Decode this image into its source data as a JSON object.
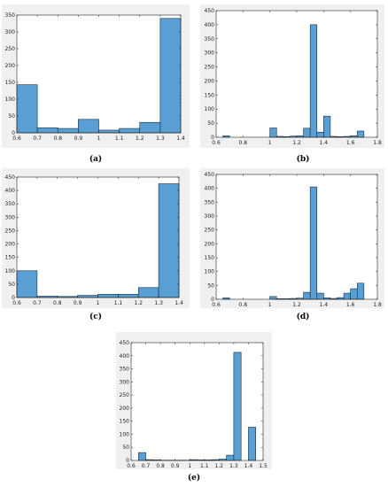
{
  "bar_color": "#5a9fd4",
  "bar_edge": "#1a2a3a",
  "panel_bg": "#f0f0f0",
  "chart_data": [
    {
      "type": "bar",
      "label": "(a)",
      "xlim": [
        0.6,
        1.4
      ],
      "ylim": [
        0,
        350
      ],
      "xticks": [
        "0.6",
        "0.7",
        "0.8",
        "0.9",
        "1",
        "1.1",
        "1.2",
        "1.3",
        "1.4"
      ],
      "xtick_values": [
        0.6,
        0.7,
        0.8,
        0.9,
        1.0,
        1.1,
        1.2,
        1.3,
        1.4
      ],
      "yticks": [
        "0",
        "50",
        "100",
        "150",
        "200",
        "250",
        "300",
        "350"
      ],
      "ytick_values": [
        0,
        50,
        100,
        150,
        200,
        250,
        300,
        350
      ],
      "bins": [
        [
          0.6,
          0.7,
          143
        ],
        [
          0.7,
          0.8,
          15
        ],
        [
          0.8,
          0.9,
          13
        ],
        [
          0.9,
          1.0,
          40
        ],
        [
          1.0,
          1.1,
          8
        ],
        [
          1.1,
          1.2,
          13
        ],
        [
          1.2,
          1.3,
          31
        ],
        [
          1.3,
          1.4,
          340
        ]
      ]
    },
    {
      "type": "bar",
      "label": "(b)",
      "xlim": [
        0.6,
        1.8
      ],
      "ylim": [
        0,
        450
      ],
      "xticks": [
        "0.6",
        "0.8",
        "1",
        "1.2",
        "1.4",
        "1.6",
        "1.8"
      ],
      "xtick_values": [
        0.6,
        0.8,
        1.0,
        1.2,
        1.4,
        1.6,
        1.8
      ],
      "yticks": [
        "0",
        "50",
        "100",
        "150",
        "200",
        "250",
        "300",
        "350",
        "400",
        "450"
      ],
      "ytick_values": [
        0,
        50,
        100,
        150,
        200,
        250,
        300,
        350,
        400,
        450
      ],
      "bins": [
        [
          0.65,
          0.7,
          5
        ],
        [
          1.0,
          1.05,
          33
        ],
        [
          1.05,
          1.1,
          3
        ],
        [
          1.1,
          1.15,
          2
        ],
        [
          1.15,
          1.2,
          4
        ],
        [
          1.2,
          1.25,
          5
        ],
        [
          1.25,
          1.3,
          32
        ],
        [
          1.3,
          1.35,
          400
        ],
        [
          1.35,
          1.4,
          18
        ],
        [
          1.4,
          1.45,
          75
        ],
        [
          1.45,
          1.5,
          3
        ],
        [
          1.5,
          1.55,
          2
        ],
        [
          1.55,
          1.6,
          3
        ],
        [
          1.6,
          1.65,
          5
        ],
        [
          1.65,
          1.7,
          22
        ]
      ]
    },
    {
      "type": "bar",
      "label": "(c)",
      "xlim": [
        0.6,
        1.4
      ],
      "ylim": [
        0,
        450
      ],
      "xticks": [
        "0.6",
        "0.7",
        "0.8",
        "0.9",
        "1",
        "1.1",
        "1.2",
        "1.3",
        "1.4"
      ],
      "xtick_values": [
        0.6,
        0.7,
        0.8,
        0.9,
        1.0,
        1.1,
        1.2,
        1.3,
        1.4
      ],
      "yticks": [
        "0",
        "50",
        "100",
        "150",
        "200",
        "250",
        "300",
        "350",
        "400",
        "450"
      ],
      "ytick_values": [
        0,
        50,
        100,
        150,
        200,
        250,
        300,
        350,
        400,
        450
      ],
      "bins": [
        [
          0.6,
          0.7,
          100
        ],
        [
          0.7,
          0.8,
          5
        ],
        [
          0.8,
          0.9,
          4
        ],
        [
          0.9,
          1.0,
          8
        ],
        [
          1.0,
          1.1,
          12
        ],
        [
          1.1,
          1.2,
          12
        ],
        [
          1.2,
          1.3,
          37
        ],
        [
          1.3,
          1.4,
          425
        ]
      ]
    },
    {
      "type": "bar",
      "label": "(d)",
      "xlim": [
        0.6,
        1.8
      ],
      "ylim": [
        0,
        450
      ],
      "xticks": [
        "0.6",
        "0.8",
        "1",
        "1.2",
        "1.4",
        "1.6",
        "1.8"
      ],
      "xtick_values": [
        0.6,
        0.8,
        1.0,
        1.2,
        1.4,
        1.6,
        1.8
      ],
      "yticks": [
        "0",
        "50",
        "100",
        "150",
        "200",
        "250",
        "300",
        "350",
        "400",
        "450"
      ],
      "ytick_values": [
        0,
        50,
        100,
        150,
        200,
        250,
        300,
        350,
        400,
        450
      ],
      "bins": [
        [
          0.65,
          0.7,
          5
        ],
        [
          1.0,
          1.05,
          10
        ],
        [
          1.05,
          1.1,
          2
        ],
        [
          1.1,
          1.15,
          2
        ],
        [
          1.15,
          1.2,
          3
        ],
        [
          1.2,
          1.25,
          4
        ],
        [
          1.25,
          1.3,
          25
        ],
        [
          1.3,
          1.35,
          405
        ],
        [
          1.35,
          1.4,
          22
        ],
        [
          1.4,
          1.45,
          5
        ],
        [
          1.45,
          1.5,
          3
        ],
        [
          1.5,
          1.55,
          6
        ],
        [
          1.55,
          1.6,
          22
        ],
        [
          1.6,
          1.65,
          38
        ],
        [
          1.65,
          1.7,
          58
        ]
      ]
    },
    {
      "type": "bar",
      "label": "(e)",
      "xlim": [
        0.6,
        1.5
      ],
      "ylim": [
        0,
        450
      ],
      "xticks": [
        "0.6",
        "0.7",
        "0.8",
        "0.9",
        "1",
        "1.1",
        "1.2",
        "1.3",
        "1.4",
        "1.5"
      ],
      "xtick_values": [
        0.6,
        0.7,
        0.8,
        0.9,
        1.0,
        1.1,
        1.2,
        1.3,
        1.4,
        1.5
      ],
      "yticks": [
        "0",
        "50",
        "100",
        "150",
        "200",
        "250",
        "300",
        "350",
        "400",
        "450"
      ],
      "ytick_values": [
        0,
        50,
        100,
        150,
        200,
        250,
        300,
        350,
        400,
        450
      ],
      "bins": [
        [
          0.65,
          0.7,
          30
        ],
        [
          0.7,
          0.75,
          3
        ],
        [
          0.75,
          0.8,
          2
        ],
        [
          0.8,
          0.85,
          1
        ],
        [
          0.85,
          0.9,
          1
        ],
        [
          0.9,
          0.95,
          1
        ],
        [
          0.95,
          1.0,
          1
        ],
        [
          1.0,
          1.05,
          3
        ],
        [
          1.05,
          1.1,
          2
        ],
        [
          1.1,
          1.15,
          2
        ],
        [
          1.15,
          1.2,
          3
        ],
        [
          1.2,
          1.25,
          5
        ],
        [
          1.25,
          1.3,
          20
        ],
        [
          1.3,
          1.35,
          413
        ],
        [
          1.35,
          1.4,
          0
        ],
        [
          1.4,
          1.45,
          127
        ]
      ]
    }
  ]
}
